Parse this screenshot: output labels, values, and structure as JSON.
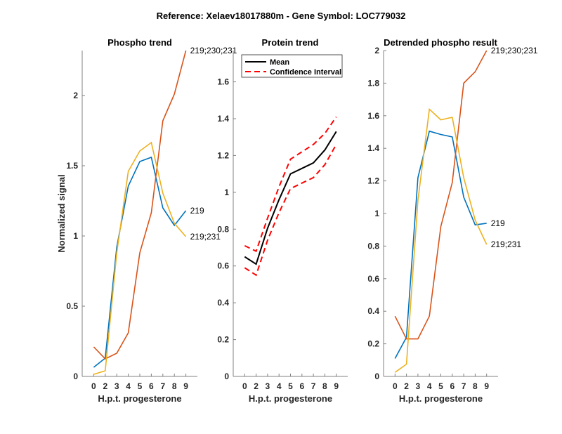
{
  "figure": {
    "suptitle": "Reference:  Xelaev18017880m - Gene Symbol:  LOC779032"
  },
  "colors": {
    "blue": "#0072BD",
    "orange": "#D95319",
    "yellow": "#EDB120",
    "mean": "#000000",
    "ci": "#FF0000",
    "axis": "#808080",
    "text": "#262626"
  },
  "chart_data": [
    {
      "type": "line",
      "title": "Phospho trend",
      "xlabel": "H.p.t. progesterone",
      "ylabel": "Normalized signal",
      "x": [
        "0",
        "2",
        "3",
        "4",
        "5",
        "6",
        "7",
        "8",
        "9"
      ],
      "yticks": [
        "0",
        "0.5",
        "1",
        "1.5",
        "2"
      ],
      "ytick_values": [
        0,
        0.5,
        1,
        1.5,
        2
      ],
      "ylim": [
        0,
        2.32
      ],
      "series": [
        {
          "name": "219",
          "color_key": "blue",
          "values": [
            0.065,
            0.13,
            0.92,
            1.355,
            1.53,
            1.56,
            1.2,
            1.075,
            1.18
          ]
        },
        {
          "name": "219;230;231",
          "color_key": "orange",
          "values": [
            0.21,
            0.125,
            0.165,
            0.31,
            0.88,
            1.165,
            1.82,
            2.01,
            2.32
          ]
        },
        {
          "name": "219;231",
          "color_key": "yellow",
          "values": [
            0.015,
            0.04,
            0.88,
            1.46,
            1.605,
            1.665,
            1.305,
            1.09,
            0.995
          ]
        }
      ]
    },
    {
      "type": "line",
      "title": "Protein trend",
      "xlabel": "H.p.t. progesterone",
      "ylabel": "",
      "x": [
        "0",
        "2",
        "3",
        "4",
        "5",
        "6",
        "7",
        "8",
        "9"
      ],
      "yticks": [
        "0",
        "0.2",
        "0.4",
        "0.6",
        "0.8",
        "1",
        "1.2",
        "1.4",
        "1.6"
      ],
      "ytick_values": [
        0,
        0.2,
        0.4,
        0.6,
        0.8,
        1,
        1.2,
        1.4,
        1.6
      ],
      "ylim": [
        0,
        1.77
      ],
      "legend": {
        "position": "top",
        "entries": [
          "Mean",
          "Confidence Interval"
        ]
      },
      "series": [
        {
          "name": "Mean",
          "color_key": "mean",
          "style": "solid",
          "values": [
            0.65,
            0.61,
            0.805,
            0.96,
            1.1,
            1.13,
            1.16,
            1.23,
            1.33
          ]
        },
        {
          "name": "Confidence Interval (upper)",
          "color_key": "ci",
          "style": "dashed",
          "values": [
            0.71,
            0.68,
            0.86,
            1.03,
            1.18,
            1.22,
            1.26,
            1.32,
            1.41
          ]
        },
        {
          "name": "Confidence Interval (lower)",
          "color_key": "ci",
          "style": "dashed",
          "values": [
            0.59,
            0.55,
            0.74,
            0.89,
            1.02,
            1.05,
            1.08,
            1.15,
            1.26
          ]
        }
      ]
    },
    {
      "type": "line",
      "title": "Detrended phospho result",
      "xlabel": "H.p.t. progesterone",
      "ylabel": "",
      "x": [
        "0",
        "2",
        "3",
        "4",
        "5",
        "6",
        "7",
        "8",
        "9"
      ],
      "yticks": [
        "0",
        "0.2",
        "0.4",
        "0.6",
        "0.8",
        "1",
        "1.2",
        "1.4",
        "1.6",
        "1.8",
        "2"
      ],
      "ytick_values": [
        0,
        0.2,
        0.4,
        0.6,
        0.8,
        1,
        1.2,
        1.4,
        1.6,
        1.8,
        2
      ],
      "ylim": [
        0,
        2
      ],
      "series": [
        {
          "name": "219",
          "color_key": "blue",
          "values": [
            0.11,
            0.24,
            1.22,
            1.505,
            1.485,
            1.47,
            1.1,
            0.93,
            0.94
          ]
        },
        {
          "name": "219;230;231",
          "color_key": "orange",
          "values": [
            0.37,
            0.23,
            0.23,
            0.37,
            0.92,
            1.19,
            1.8,
            1.87,
            2.0
          ]
        },
        {
          "name": "219;231",
          "color_key": "yellow",
          "values": [
            0.025,
            0.075,
            1.08,
            1.64,
            1.575,
            1.59,
            1.22,
            0.96,
            0.81
          ]
        }
      ]
    }
  ]
}
